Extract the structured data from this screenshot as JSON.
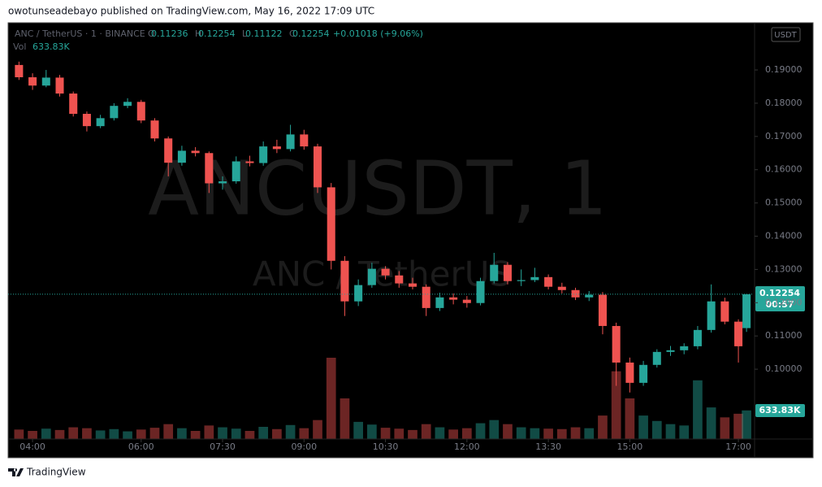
{
  "header": {
    "byline": "owotunseadebayo published on TradingView.com, May 16, 2022 17:09 UTC"
  },
  "footer": {
    "brand": "TradingView"
  },
  "chart_data": {
    "type": "candlestick",
    "title": "ANC / TetherUS · 1 · BINANCE",
    "watermark": [
      "ANCUSDT, 1",
      "ANC / TetherUS"
    ],
    "currency": "USDT",
    "ohlc_labels": [
      "O",
      "H",
      "L",
      "C"
    ],
    "change": "+0.01018 (+9.06%)",
    "countdown": "00:57",
    "up_color": "#26a69a",
    "down_color": "#ef5350",
    "grid": false,
    "x": [
      225,
      240,
      255,
      270,
      285,
      300,
      315,
      330,
      345,
      360,
      375,
      390,
      405,
      420,
      435,
      450,
      465,
      480,
      495,
      510,
      525,
      540,
      555,
      570,
      585,
      600,
      615,
      630,
      645,
      660,
      675,
      690,
      705,
      720,
      735,
      750,
      765,
      780,
      795,
      810,
      825,
      840,
      855,
      870,
      885,
      900,
      915,
      930,
      945,
      960,
      975,
      990,
      1005,
      1020,
      1029
    ],
    "open": [
      0.1915,
      0.1878,
      0.1853,
      0.1877,
      0.1829,
      0.1768,
      0.1731,
      0.1755,
      0.1792,
      0.1804,
      0.1748,
      0.1694,
      0.1621,
      0.1657,
      0.165,
      0.1559,
      0.1565,
      0.1625,
      0.162,
      0.167,
      0.1662,
      0.1706,
      0.167,
      0.1547,
      0.1326,
      0.1204,
      0.1253,
      0.1302,
      0.1282,
      0.1258,
      0.1248,
      0.1184,
      0.1216,
      0.1209,
      0.1199,
      0.1265,
      0.1314,
      0.1265,
      0.1268,
      0.1277,
      0.1248,
      0.1238,
      0.1216,
      0.1224,
      0.113,
      0.102,
      0.0959,
      0.1013,
      0.1052,
      0.1057,
      0.1069,
      0.1118,
      0.1204,
      0.1143,
      0.11236
    ],
    "high": [
      0.1925,
      0.189,
      0.19,
      0.1885,
      0.1835,
      0.1775,
      0.1765,
      0.18,
      0.1815,
      0.181,
      0.1755,
      0.17,
      0.1672,
      0.1668,
      0.1655,
      0.158,
      0.164,
      0.1642,
      0.1685,
      0.169,
      0.1735,
      0.172,
      0.1678,
      0.156,
      0.134,
      0.127,
      0.132,
      0.131,
      0.1295,
      0.1275,
      0.1255,
      0.123,
      0.1228,
      0.122,
      0.1275,
      0.135,
      0.1322,
      0.13,
      0.1305,
      0.1285,
      0.126,
      0.1245,
      0.1235,
      0.1232,
      0.114,
      0.1035,
      0.1025,
      0.106,
      0.107,
      0.1078,
      0.113,
      0.1255,
      0.1215,
      0.115,
      0.12254
    ],
    "low": [
      0.187,
      0.184,
      0.1848,
      0.182,
      0.176,
      0.1715,
      0.1725,
      0.1748,
      0.1785,
      0.174,
      0.1685,
      0.158,
      0.1612,
      0.164,
      0.153,
      0.154,
      0.1558,
      0.161,
      0.1612,
      0.165,
      0.1655,
      0.166,
      0.153,
      0.13,
      0.116,
      0.119,
      0.1245,
      0.127,
      0.1245,
      0.124,
      0.116,
      0.1175,
      0.1195,
      0.1185,
      0.1192,
      0.1258,
      0.1255,
      0.125,
      0.1262,
      0.124,
      0.1228,
      0.1208,
      0.1205,
      0.1105,
      0.095,
      0.093,
      0.095,
      0.1005,
      0.104,
      0.1045,
      0.106,
      0.111,
      0.1135,
      0.102,
      0.11122
    ],
    "close": [
      0.1878,
      0.1853,
      0.1877,
      0.1829,
      0.1768,
      0.1731,
      0.1755,
      0.1792,
      0.1804,
      0.1748,
      0.1694,
      0.1621,
      0.1657,
      0.165,
      0.1559,
      0.1565,
      0.1625,
      0.162,
      0.167,
      0.1662,
      0.1706,
      0.167,
      0.1547,
      0.1326,
      0.1204,
      0.1253,
      0.1302,
      0.1282,
      0.1258,
      0.1248,
      0.1184,
      0.1216,
      0.1209,
      0.1199,
      0.1265,
      0.1314,
      0.1265,
      0.1268,
      0.1277,
      0.1248,
      0.1238,
      0.1216,
      0.1224,
      0.113,
      0.102,
      0.0959,
      0.1013,
      0.1052,
      0.1057,
      0.1069,
      0.1118,
      0.1204,
      0.1143,
      0.1069,
      0.12254
    ],
    "volume": {
      "name": "Vol",
      "last_label": "633.83K",
      "values": [
        210,
        180,
        230,
        200,
        260,
        240,
        190,
        220,
        170,
        210,
        250,
        330,
        240,
        180,
        300,
        260,
        230,
        180,
        270,
        220,
        310,
        240,
        420,
        1800,
        900,
        380,
        320,
        250,
        230,
        200,
        330,
        260,
        210,
        240,
        350,
        420,
        330,
        260,
        240,
        230,
        220,
        260,
        240,
        520,
        1500,
        900,
        520,
        400,
        330,
        300,
        1300,
        700,
        480,
        560,
        633.83
      ]
    },
    "xlim": [
      213,
      1037
    ],
    "ylim": [
      0.079,
      0.2037
    ],
    "xticks": [
      {
        "value": 240,
        "label": "04:00"
      },
      {
        "value": 360,
        "label": "06:00"
      },
      {
        "value": 450,
        "label": "07:30"
      },
      {
        "value": 540,
        "label": "09:00"
      },
      {
        "value": 630,
        "label": "10:30"
      },
      {
        "value": 720,
        "label": "12:00"
      },
      {
        "value": 810,
        "label": "13:30"
      },
      {
        "value": 900,
        "label": "15:00"
      },
      {
        "value": 1020,
        "label": "17:00"
      }
    ],
    "yticks": [
      {
        "value": 0.1,
        "label": "0.10000"
      },
      {
        "value": 0.11,
        "label": "0.11000"
      },
      {
        "value": 0.12,
        "label": "0.12000"
      },
      {
        "value": 0.13,
        "label": "0.13000"
      },
      {
        "value": 0.14,
        "label": "0.14000"
      },
      {
        "value": 0.15,
        "label": "0.15000"
      },
      {
        "value": 0.16,
        "label": "0.16000"
      },
      {
        "value": 0.17,
        "label": "0.17000"
      },
      {
        "value": 0.18,
        "label": "0.18000"
      },
      {
        "value": 0.19,
        "label": "0.19000"
      }
    ]
  }
}
